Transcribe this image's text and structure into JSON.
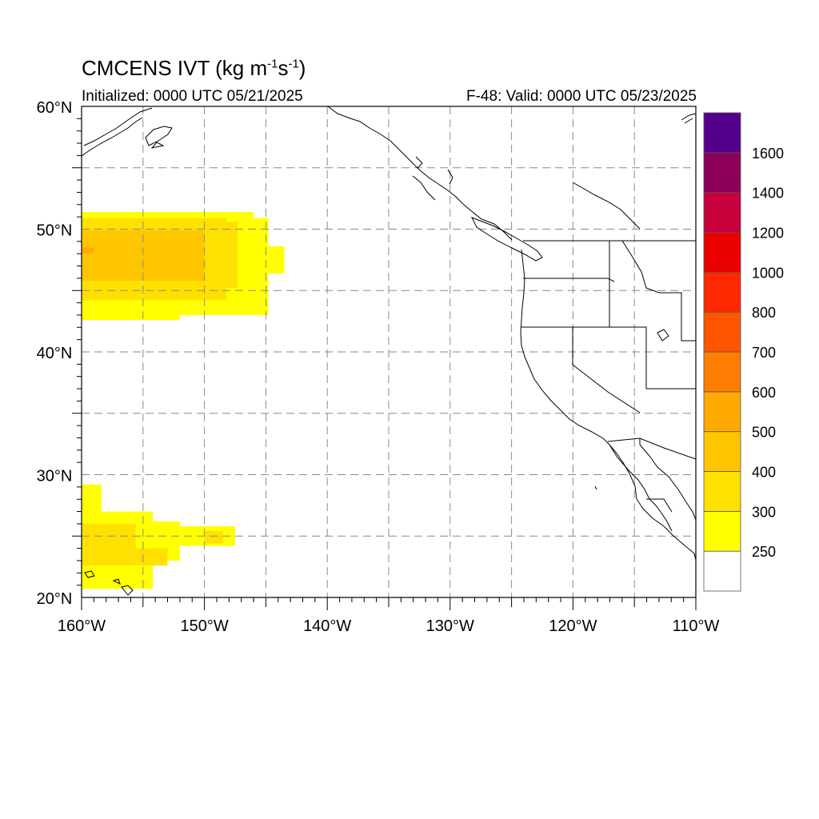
{
  "header": {
    "title_main": "CMCENS IVT (kg m",
    "title_exp1": "-1",
    "title_mid": "s",
    "title_exp2": "-1",
    "title_end": ")",
    "initialized": "Initialized: 0000 UTC 05/21/2025",
    "valid": "F-48: Valid: 0000 UTC 05/23/2025"
  },
  "axes": {
    "lon_range": [
      -160,
      -110
    ],
    "lat_range": [
      20,
      60
    ],
    "x_ticks": [
      {
        "value": -160,
        "label": "160°W"
      },
      {
        "value": -150,
        "label": "150°W"
      },
      {
        "value": -140,
        "label": "140°W"
      },
      {
        "value": -130,
        "label": "130°W"
      },
      {
        "value": -120,
        "label": "120°W"
      },
      {
        "value": -110,
        "label": "110°W"
      }
    ],
    "y_ticks": [
      {
        "value": 60,
        "label": "60°N"
      },
      {
        "value": 50,
        "label": "50°N"
      },
      {
        "value": 40,
        "label": "40°N"
      },
      {
        "value": 30,
        "label": "30°N"
      },
      {
        "value": 20,
        "label": "20°N"
      }
    ],
    "gridlines": true,
    "grid_interval_deg": 5
  },
  "colorbar": {
    "levels": [
      250,
      300,
      400,
      500,
      600,
      700,
      800,
      1000,
      1200,
      1400,
      1600
    ],
    "labels": [
      "250",
      "300",
      "400",
      "500",
      "600",
      "700",
      "800",
      "1000",
      "1200",
      "1400",
      "1600"
    ],
    "colors": [
      "#ffffff",
      "#ffff00",
      "#ffe100",
      "#ffc600",
      "#ffaa00",
      "#ff7d00",
      "#ff5500",
      "#ff2800",
      "#eb0000",
      "#c8003c",
      "#8c005a",
      "#55008c"
    ]
  },
  "chart_data": {
    "type": "heatmap",
    "variable": "IVT",
    "units": "kg m-1 s-1",
    "regions": [
      {
        "name": "north-pacific-plume",
        "lon_min": -160,
        "lon_max": -143.5,
        "lat_min": 42.8,
        "lat_max": 51.8,
        "peak_band": "400-500"
      },
      {
        "name": "subtropical-plume",
        "lon_min": -160,
        "lon_max": -147.5,
        "lat_min": 20.3,
        "lat_max": 29.2,
        "peak_band": "300-400"
      }
    ],
    "cells": [
      [
        -160,
        51.4,
        -146,
        50.9,
        0
      ],
      [
        -160,
        50.9,
        -144.8,
        43.0,
        0
      ],
      [
        -160,
        43.0,
        -152,
        42.6,
        0
      ],
      [
        -146,
        48.6,
        -143.5,
        46.4,
        0
      ],
      [
        -160,
        50.9,
        -148.2,
        44.2,
        1
      ],
      [
        -160,
        50.6,
        -147.3,
        45.2,
        1
      ],
      [
        -160,
        49.9,
        -150.0,
        45.8,
        2
      ],
      [
        -159.6,
        49.5,
        -152.7,
        46.6,
        2
      ],
      [
        -160,
        48.5,
        -159.0,
        48.0,
        3
      ],
      [
        -160,
        29.2,
        -158.4,
        25.0,
        0
      ],
      [
        -160,
        27.0,
        -154.2,
        20.7,
        0
      ],
      [
        -160,
        26.2,
        -152.0,
        23.0,
        0
      ],
      [
        -152,
        25.8,
        -147.5,
        24.2,
        0
      ],
      [
        -160,
        26.0,
        -155.6,
        24.0,
        1
      ],
      [
        -160,
        24.0,
        -153.0,
        22.6,
        1
      ],
      [
        -150,
        25.4,
        -148.5,
        24.4,
        1
      ]
    ]
  },
  "map_labels": {}
}
